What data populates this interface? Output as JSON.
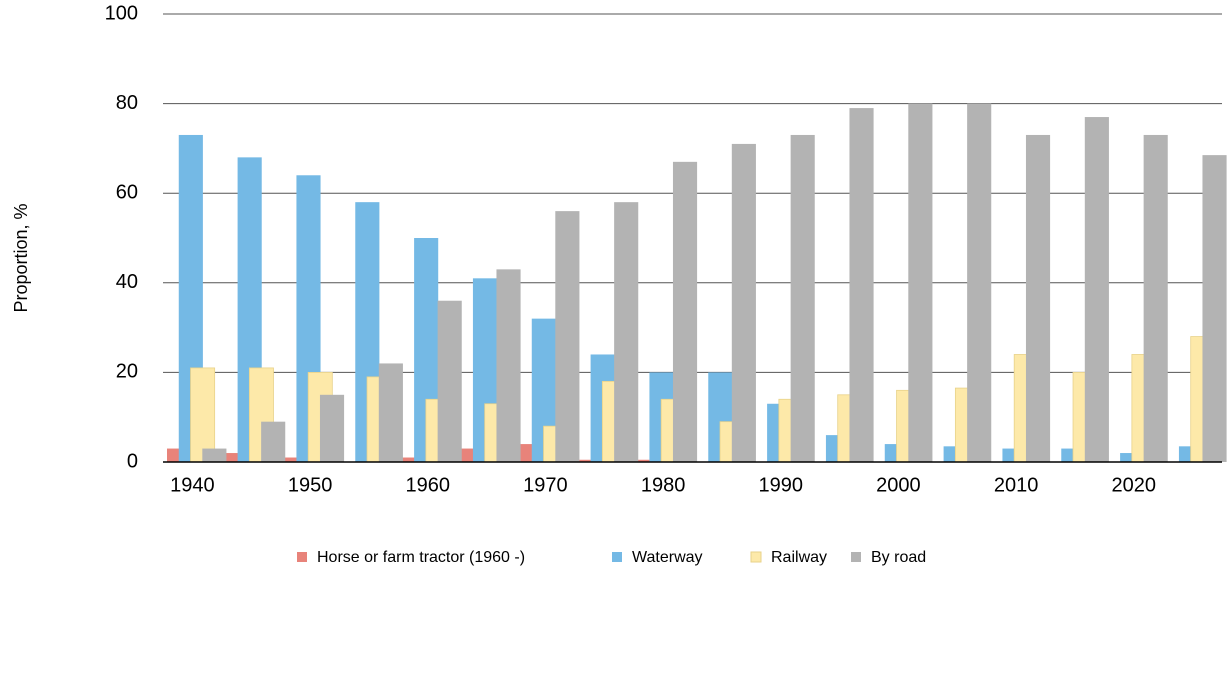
{
  "chart_data": {
    "type": "bar",
    "y_label": "Proportion, %",
    "categories": [
      "1940",
      null,
      "1950",
      null,
      "1960",
      null,
      "1970",
      null,
      "1980",
      null,
      "1990",
      null,
      "2000",
      null,
      "2010",
      null,
      "2020",
      null
    ],
    "series": [
      {
        "name": "Horse or farm tractor (1960 -)",
        "color": "#e8837a",
        "values": [
          3,
          2,
          1,
          0,
          1,
          3,
          4,
          0.5,
          0.5,
          0,
          0,
          0,
          0,
          0,
          0,
          0,
          0,
          0
        ]
      },
      {
        "name": "Waterway",
        "color": "#74b9e5",
        "values": [
          73,
          68,
          64,
          58,
          50,
          41,
          32,
          24,
          20,
          20,
          13,
          6,
          4,
          3.5,
          3,
          3,
          2,
          3.5
        ]
      },
      {
        "name": "Railway",
        "color": "#fde9a9",
        "values": [
          21,
          21,
          20,
          19,
          14,
          13,
          8,
          18,
          14,
          9,
          14,
          15,
          16,
          16.5,
          24,
          20,
          24,
          28
        ]
      },
      {
        "name": "By road",
        "color": "#b3b3b3",
        "values": [
          3,
          9,
          15,
          22,
          36,
          43,
          56,
          58,
          67,
          71,
          73,
          79,
          80,
          80,
          73,
          77,
          73,
          68.5
        ]
      }
    ],
    "ylim": [
      0,
      100
    ],
    "yticks": [
      0,
      20,
      40,
      60,
      80,
      100
    ],
    "grid": true
  }
}
